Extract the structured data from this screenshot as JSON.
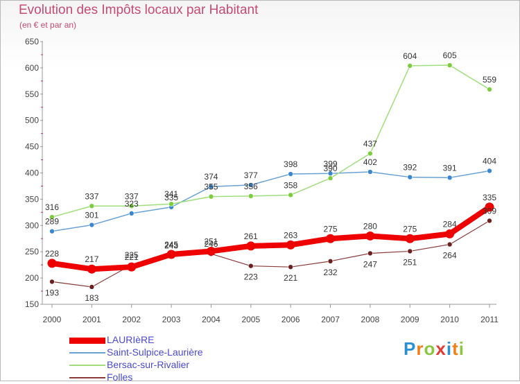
{
  "title": "Evolution des Impôts locaux par Habitant",
  "subtitle": "(en € et par an)",
  "logo": {
    "letters": [
      "P",
      "r",
      "o",
      "x",
      "i",
      "t",
      "i"
    ]
  },
  "chart_data": {
    "type": "line",
    "categories": [
      "2000",
      "2001",
      "2002",
      "2003",
      "2004",
      "2005",
      "2006",
      "2007",
      "2008",
      "2009",
      "2010",
      "2011"
    ],
    "ylim": [
      150,
      650
    ],
    "yticks": [
      150,
      200,
      250,
      300,
      350,
      400,
      450,
      500,
      550,
      600,
      650
    ],
    "grid": false,
    "legend_position": "bottom-left",
    "series": [
      {
        "name": "LAURIèRE",
        "color": "#ee0000",
        "dot": "#ee0000",
        "width": 8,
        "values": [
          228,
          217,
          221,
          245,
          251,
          261,
          263,
          275,
          280,
          275,
          284,
          335
        ]
      },
      {
        "name": "Saint-Sulpice-Laurière",
        "color": "#6aa1d4",
        "dot": "#3b87cf",
        "width": 1.5,
        "values": [
          289,
          301,
          323,
          335,
          374,
          377,
          398,
          399,
          402,
          392,
          391,
          404
        ]
      },
      {
        "name": "Bersac-sur-Rivalier",
        "color": "#9fde7a",
        "dot": "#7ccd3d",
        "width": 1.5,
        "values": [
          316,
          337,
          337,
          341,
          355,
          356,
          358,
          390,
          437,
          604,
          605,
          559
        ]
      },
      {
        "name": "Folles",
        "color": "#8a3a3a",
        "dot": "#6b2020",
        "width": 1.2,
        "values": [
          193,
          183,
          225,
          243,
          246,
          223,
          221,
          232,
          247,
          251,
          264,
          309
        ]
      }
    ]
  }
}
